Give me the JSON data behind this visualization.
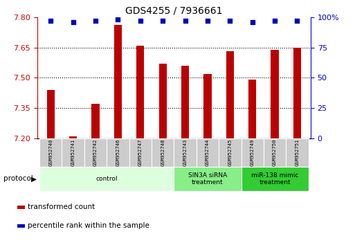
{
  "title": "GDS4255 / 7936661",
  "samples": [
    "GSM952740",
    "GSM952741",
    "GSM952742",
    "GSM952746",
    "GSM952747",
    "GSM952748",
    "GSM952743",
    "GSM952744",
    "GSM952745",
    "GSM952749",
    "GSM952750",
    "GSM952751"
  ],
  "transformed_counts": [
    7.44,
    7.21,
    7.37,
    7.76,
    7.66,
    7.57,
    7.56,
    7.52,
    7.63,
    7.49,
    7.64,
    7.65
  ],
  "percentile_ranks": [
    97,
    96,
    97,
    98,
    97,
    97,
    97,
    97,
    97,
    96,
    97,
    97
  ],
  "bar_color": "#bb0000",
  "dot_color": "#0000bb",
  "ylim_left": [
    7.2,
    7.8
  ],
  "ylim_right": [
    0,
    100
  ],
  "yticks_left": [
    7.2,
    7.35,
    7.5,
    7.65,
    7.8
  ],
  "yticks_right": [
    0,
    25,
    50,
    75,
    100
  ],
  "grid_color": "#000000",
  "groups": [
    {
      "label": "control",
      "start": 0,
      "end": 6,
      "color": "#ddffdd"
    },
    {
      "label": "SIN3A siRNA\ntreatment",
      "start": 6,
      "end": 9,
      "color": "#88ee88"
    },
    {
      "label": "miR-138 mimic\ntreatment",
      "start": 9,
      "end": 12,
      "color": "#33cc33"
    }
  ],
  "protocol_label": "protocol",
  "legend_items": [
    {
      "label": "transformed count",
      "color": "#bb0000"
    },
    {
      "label": "percentile rank within the sample",
      "color": "#0000bb"
    }
  ],
  "background_color": "#ffffff",
  "tick_label_color_left": "#cc0000",
  "tick_label_color_right": "#0000cc",
  "bar_width": 0.35,
  "sample_box_color": "#cccccc",
  "sample_box_edge_color": "#ffffff",
  "spine_color": "#000000"
}
